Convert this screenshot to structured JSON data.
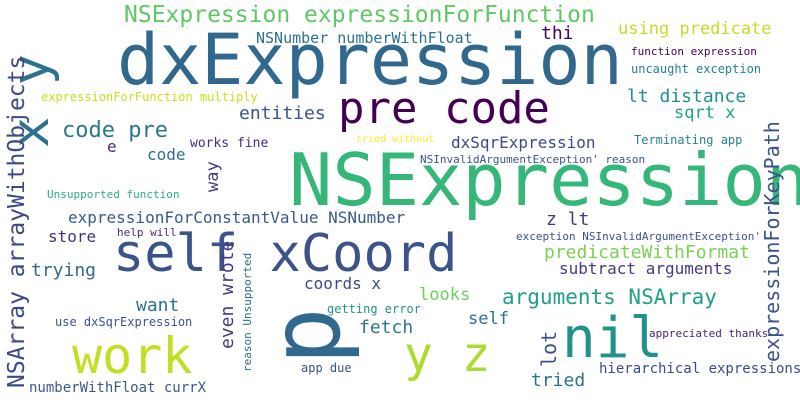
{
  "words": [
    {
      "text": "NSExpression expressionForFunction",
      "color": "#5ec962"
    },
    {
      "text": "dxExpression",
      "color": "#31688e"
    },
    {
      "text": "NSNumber numberWithFloat",
      "color": "#2c728e"
    },
    {
      "text": "thi",
      "color": "#440154"
    },
    {
      "text": "using predicate",
      "color": "#bddf26"
    },
    {
      "text": "function expression",
      "color": "#440154"
    },
    {
      "text": "uncaught exception",
      "color": "#26828e"
    },
    {
      "text": "pre code",
      "color": "#440154"
    },
    {
      "text": "lt distance",
      "color": "#21918c"
    },
    {
      "text": "expressionForFunction multiply",
      "color": "#c8e020"
    },
    {
      "text": "entities",
      "color": "#3b528b"
    },
    {
      "text": "sqrt x",
      "color": "#20a486"
    },
    {
      "text": "code pre",
      "color": "#2a788e"
    },
    {
      "text": "Terminating app",
      "color": "#26828e"
    },
    {
      "text": "tried without",
      "color": "#fde725"
    },
    {
      "text": "works fine",
      "color": "#472d7b"
    },
    {
      "text": "dxSqrExpression",
      "color": "#3e4989"
    },
    {
      "text": "e",
      "color": "#482878"
    },
    {
      "text": "code",
      "color": "#2c728e"
    },
    {
      "text": "NSInvalidArgumentException' reason",
      "color": "#3b528b"
    },
    {
      "text": "NSExpression",
      "color": "#35b779"
    },
    {
      "text": "Unsupported function",
      "color": "#28ae80"
    },
    {
      "text": "expressionForConstantValue NSNumber",
      "color": "#38598c"
    },
    {
      "text": "z lt",
      "color": "#443983"
    },
    {
      "text": "exception NSInvalidArgumentException'",
      "color": "#3b528b"
    },
    {
      "text": "help will",
      "color": "#482878"
    },
    {
      "text": "store",
      "color": "#46307e"
    },
    {
      "text": "self xCoord",
      "color": "#3b528b"
    },
    {
      "text": "predicateWithFormat",
      "color": "#7ad151"
    },
    {
      "text": "subtract arguments",
      "color": "#443983"
    },
    {
      "text": "trying",
      "color": "#31688e"
    },
    {
      "text": "coords x",
      "color": "#3e4989"
    },
    {
      "text": "arguments NSArray",
      "color": "#1fa187"
    },
    {
      "text": "want",
      "color": "#2c728e"
    },
    {
      "text": "looks",
      "color": "#6ece58"
    },
    {
      "text": "getting error",
      "color": "#21918c"
    },
    {
      "text": "self",
      "color": "#2c728e"
    },
    {
      "text": "fetch",
      "color": "#2a788e"
    },
    {
      "text": "use dxSqrExpression",
      "color": "#3b528b"
    },
    {
      "text": "work",
      "color": "#c2df23"
    },
    {
      "text": "nil",
      "color": "#21918c"
    },
    {
      "text": "y z",
      "color": "#addc30"
    },
    {
      "text": "appreciated thanks",
      "color": "#482475"
    },
    {
      "text": "app due",
      "color": "#3b528b"
    },
    {
      "text": "hierarchical expressions",
      "color": "#3e4989"
    },
    {
      "text": "tried",
      "color": "#2c728e"
    },
    {
      "text": "numberWithFloat currX",
      "color": "#38598c"
    },
    {
      "text": "x y",
      "color": "#2c728e"
    },
    {
      "text": "NSArray arrayWithObjects",
      "color": "#3e4989"
    },
    {
      "text": "way",
      "color": "#443983"
    },
    {
      "text": "even wrote",
      "color": "#443983"
    },
    {
      "text": "reason Unsupported",
      "color": "#2c728e"
    },
    {
      "text": "p",
      "color": "#31688e"
    },
    {
      "text": "lot",
      "color": "#3b528b"
    },
    {
      "text": "expressionForKeyPath",
      "color": "#3b528b"
    }
  ]
}
